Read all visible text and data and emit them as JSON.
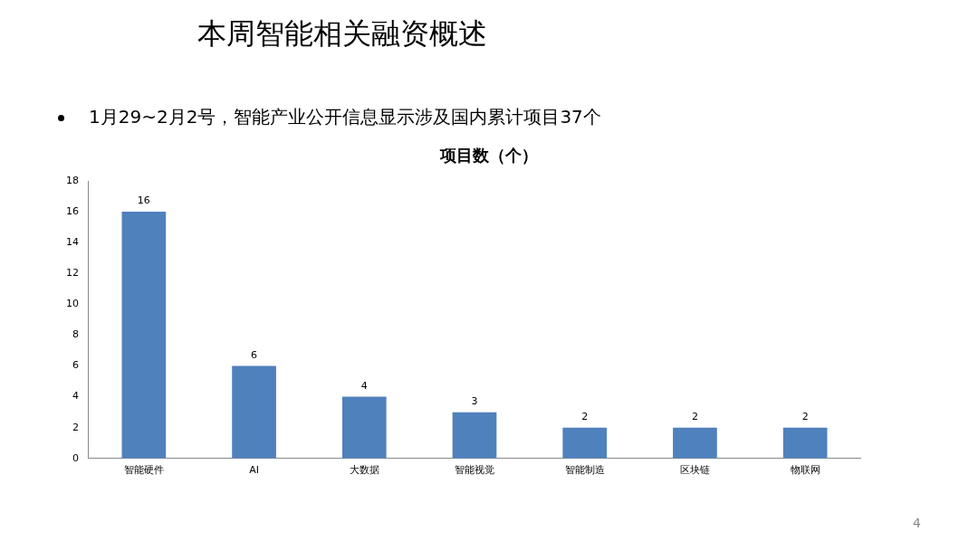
{
  "chart_data": {
    "type": "bar",
    "title": "本周智能相关融资概述",
    "subtitle": "1月29~2月2号，智能产业公开信息显示涉及国内累计项目37个",
    "annotations": [
      "项目数（个）",
      "4"
    ],
    "categories": [
      "智能硬件",
      "AI",
      "大数据",
      "智能视觉",
      "智能制造",
      "区块链",
      "物联网"
    ],
    "values": [
      16,
      6,
      4,
      3,
      2,
      2,
      2
    ],
    "color": "#4f81bd",
    "ylim": [
      0,
      18
    ],
    "yticks": [
      0,
      2,
      4,
      6,
      8,
      10,
      12,
      14,
      16,
      18
    ],
    "grid": false,
    "data_labels": true
  }
}
